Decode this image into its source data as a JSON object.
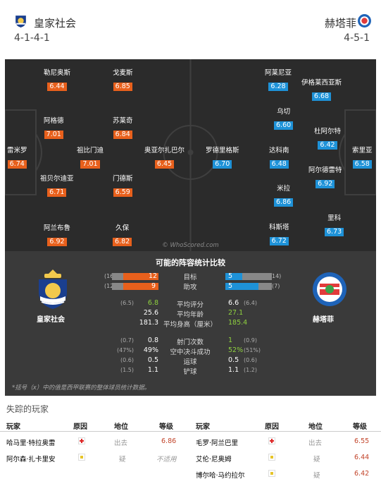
{
  "home": {
    "name": "皇家社会",
    "formation": "4-1-4-1"
  },
  "away": {
    "name": "赫塔菲",
    "formation": "4-5-1"
  },
  "watermark": "© WhoScored.com",
  "pitch": {
    "home_players": [
      {
        "name": "雷米罗",
        "rating": "6.74"
      },
      {
        "name": "祖贝尔迪亚",
        "rating": "6.71"
      },
      {
        "name": "阿格德",
        "rating": "7.01"
      },
      {
        "name": "阿兰布鲁",
        "rating": "6.92"
      },
      {
        "name": "勒尼奥斯",
        "rating": "6.44"
      },
      {
        "name": "祖比门迪",
        "rating": "7.01"
      },
      {
        "name": "久保",
        "rating": "6.82"
      },
      {
        "name": "门德斯",
        "rating": "6.59"
      },
      {
        "name": "苏莱奇",
        "rating": "6.84"
      },
      {
        "name": "戈麦斯",
        "rating": "6.85"
      },
      {
        "name": "奥亚尔扎巴尔",
        "rating": "6.45"
      }
    ],
    "away_players": [
      {
        "name": "索里亚",
        "rating": "6.58"
      },
      {
        "name": "伊格莱西亚斯",
        "rating": "6.68"
      },
      {
        "name": "杜阿尔特",
        "rating": "6.42"
      },
      {
        "name": "阿尔德雷特",
        "rating": "6.92"
      },
      {
        "name": "里科",
        "rating": "6.73"
      },
      {
        "name": "阿莱尼亚",
        "rating": "6.28"
      },
      {
        "name": "乌切",
        "rating": "6.60"
      },
      {
        "name": "达科南",
        "rating": "6.48"
      },
      {
        "name": "米拉",
        "rating": "6.86"
      },
      {
        "name": "科斯塔",
        "rating": "6.72"
      },
      {
        "name": "罗德里格斯",
        "rating": "6.70"
      }
    ]
  },
  "comparison": {
    "title": "可能的阵容统计比较",
    "bar_rows": [
      {
        "label": "目标",
        "home": "12",
        "home_paren": "(16",
        "away": "5",
        "away_paren": "14)",
        "home_fill": 0.75,
        "away_fill": 0.36
      },
      {
        "label": "助攻",
        "home": "9",
        "home_paren": "(12",
        "away": "5",
        "away_paren": "(7)",
        "home_fill": 0.75,
        "away_fill": 0.71
      }
    ],
    "rows": [
      {
        "label": "平均评分",
        "home": "6.8",
        "home_paren": "(6.5)",
        "away": "6.6",
        "away_paren": "(6.4)",
        "win": "home"
      },
      {
        "label": "平均年龄",
        "home": "25.6",
        "home_paren": "",
        "away": "27.1",
        "away_paren": "",
        "win": "away"
      },
      {
        "label": "平均身高（厘米）",
        "home": "181.3",
        "home_paren": "",
        "away": "185.4",
        "away_paren": "",
        "win": "away"
      },
      {
        "label": "射门次数",
        "home": "0.8",
        "home_paren": "(0.7)",
        "away": "1",
        "away_paren": "(0.9)",
        "win": "away"
      },
      {
        "label": "空中决斗成功",
        "home": "49%",
        "home_paren": "(47%)",
        "away": "52%",
        "away_paren": "(51%)",
        "win": "away"
      },
      {
        "label": "运球",
        "home": "0.5",
        "home_paren": "(0.6)",
        "away": "0.5",
        "away_paren": "(0.6)",
        "win": ""
      },
      {
        "label": "铲球",
        "home": "1.1",
        "home_paren": "(1.5)",
        "away": "1.1",
        "away_paren": "(1.2)",
        "win": ""
      }
    ],
    "note": "*括号（x）中的值是西甲联赛的整体球员统计数据。"
  },
  "missing": {
    "title": "失踪的玩家",
    "headers": {
      "player": "玩家",
      "reason": "原因",
      "status": "地位",
      "rating": "等级"
    },
    "home": [
      {
        "player": "哈马里·特拉奥雷",
        "icon": "injury-icon",
        "status": "出去",
        "rating": "6.86"
      },
      {
        "player": "阿尔森·扎卡里安",
        "icon": "doubtful-icon",
        "status": "疑",
        "rating": "不适用"
      }
    ],
    "away": [
      {
        "player": "毛罗·阿兰巴里",
        "icon": "injury-icon",
        "status": "出去",
        "rating": "6.55"
      },
      {
        "player": "艾伦·尼奥姆",
        "icon": "doubtful-icon",
        "status": "疑",
        "rating": "6.44"
      },
      {
        "player": "博尔哈·马约拉尔",
        "icon": "doubtful-icon",
        "status": "疑",
        "rating": "6.42"
      }
    ]
  },
  "colors": {
    "home_accent": "#e8601c",
    "away_accent": "#1e92d8",
    "win_green": "#8fd13f",
    "pitch": "#2b2b2b"
  }
}
